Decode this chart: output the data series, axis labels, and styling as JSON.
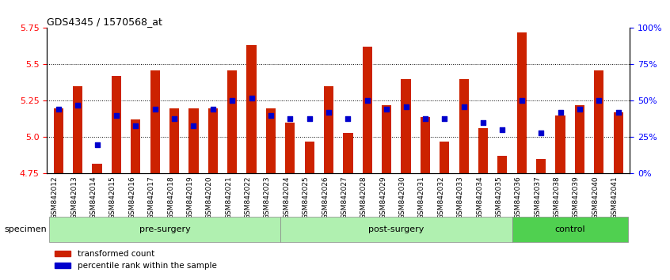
{
  "title": "GDS4345 / 1570568_at",
  "samples": [
    "GSM842012",
    "GSM842013",
    "GSM842014",
    "GSM842015",
    "GSM842016",
    "GSM842017",
    "GSM842018",
    "GSM842019",
    "GSM842020",
    "GSM842021",
    "GSM842022",
    "GSM842023",
    "GSM842024",
    "GSM842025",
    "GSM842026",
    "GSM842027",
    "GSM842028",
    "GSM842029",
    "GSM842030",
    "GSM842031",
    "GSM842032",
    "GSM842033",
    "GSM842034",
    "GSM842035",
    "GSM842036",
    "GSM842037",
    "GSM842038",
    "GSM842039",
    "GSM842040",
    "GSM842041"
  ],
  "red_values": [
    5.2,
    5.35,
    4.82,
    5.42,
    5.12,
    5.46,
    5.2,
    5.2,
    5.2,
    5.46,
    5.63,
    5.2,
    5.1,
    4.97,
    5.35,
    5.03,
    5.62,
    5.22,
    5.4,
    5.14,
    4.97,
    5.4,
    5.06,
    4.87,
    5.72,
    4.85,
    5.15,
    5.22,
    5.46,
    5.17
  ],
  "blue_values": [
    44,
    47,
    20,
    40,
    33,
    44,
    38,
    33,
    44,
    50,
    52,
    40,
    38,
    38,
    42,
    38,
    50,
    44,
    46,
    38,
    38,
    46,
    35,
    30,
    50,
    28,
    42,
    44,
    50,
    42
  ],
  "groups": [
    {
      "label": "pre-surgery",
      "start": 0,
      "end": 12,
      "color": "#90ee90"
    },
    {
      "label": "post-surgery",
      "start": 12,
      "end": 24,
      "color": "#90ee90"
    },
    {
      "label": "control",
      "start": 24,
      "end": 30,
      "color": "#32cd32"
    }
  ],
  "ylim_left": [
    4.75,
    5.75
  ],
  "ylim_right": [
    0,
    100
  ],
  "yticks_left": [
    4.75,
    5.0,
    5.25,
    5.5,
    5.75
  ],
  "yticks_right": [
    0,
    25,
    50,
    75,
    100
  ],
  "ytick_labels_right": [
    "0%",
    "25%",
    "50%",
    "75%",
    "100%"
  ],
  "bar_color": "#cc2200",
  "dot_color": "#0000cc",
  "baseline": 4.75,
  "legend_items": [
    {
      "color": "#cc2200",
      "label": "transformed count"
    },
    {
      "color": "#0000cc",
      "label": "percentile rank within the sample"
    }
  ]
}
